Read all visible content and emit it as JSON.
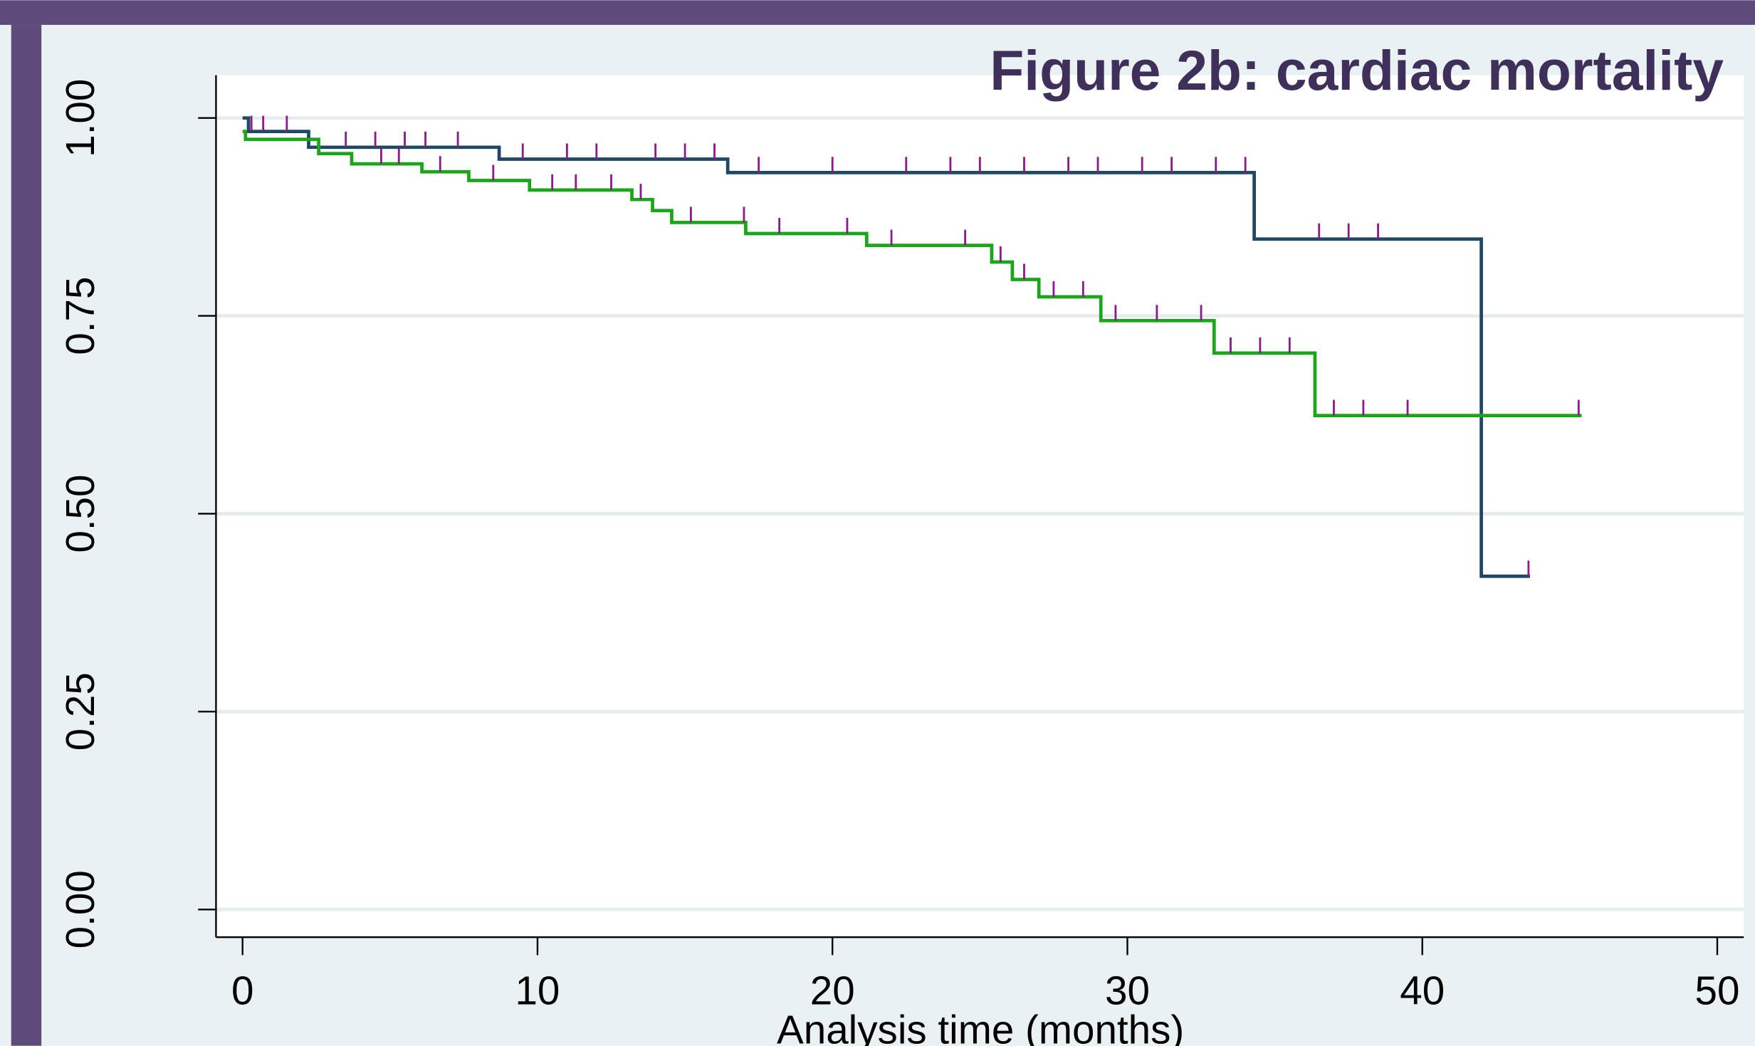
{
  "chart_data": {
    "type": "step",
    "title": "Figure 2b: cardiac mortality",
    "x_label": "Analysis time (months)",
    "xlim": [
      -0.9,
      50.9
    ],
    "ylim": [
      -0.035,
      1.054
    ],
    "xticks": [
      0,
      10,
      20,
      30,
      40,
      50
    ],
    "yticks": [
      {
        "value": 0,
        "label": "0.00"
      },
      {
        "value": 0.25,
        "label": "0.25"
      },
      {
        "value": 0.5,
        "label": "0.50"
      },
      {
        "value": 0.75,
        "label": "0.75"
      },
      {
        "value": 1,
        "label": "1.00"
      }
    ],
    "grid": true,
    "censor_color": "#8b1a8b",
    "series": [
      {
        "color": "#1f4766",
        "x": [
          0,
          0.2,
          2.24,
          8.7,
          16.45,
          34.3,
          42.0,
          43.65
        ],
        "values": [
          1.0,
          0.983,
          0.963,
          0.948,
          0.931,
          0.847,
          0.421,
          0.421
        ],
        "censored": [
          0.3,
          0.7,
          1.5,
          3.5,
          4.5,
          5.5,
          6.2,
          7.3,
          9.5,
          11,
          12,
          14,
          15,
          16,
          17.5,
          20,
          22.5,
          24,
          25,
          26.5,
          28,
          29,
          30.5,
          31.5,
          33,
          34,
          36.5,
          37.5,
          38.5,
          43.6
        ]
      },
      {
        "color": "#1aa51a",
        "x": [
          0,
          0.1,
          2.58,
          3.7,
          6.08,
          7.67,
          9.73,
          13.2,
          13.9,
          14.55,
          17.06,
          21.16,
          25.4,
          26.1,
          27.0,
          29.1,
          32.94,
          36.36,
          45.4
        ],
        "values": [
          0.983,
          0.973,
          0.955,
          0.942,
          0.932,
          0.921,
          0.909,
          0.897,
          0.883,
          0.868,
          0.854,
          0.839,
          0.818,
          0.796,
          0.774,
          0.744,
          0.703,
          0.624,
          0.624
        ],
        "censored": [
          4.7,
          5.3,
          6.7,
          8.5,
          10.5,
          11.3,
          12.5,
          13.5,
          15.2,
          17,
          18.2,
          20.5,
          22,
          24.5,
          25.7,
          26.5,
          27.5,
          28.5,
          29.6,
          31,
          32.5,
          33.5,
          34.5,
          35.5,
          37,
          38,
          39.5,
          45.3
        ]
      }
    ]
  }
}
